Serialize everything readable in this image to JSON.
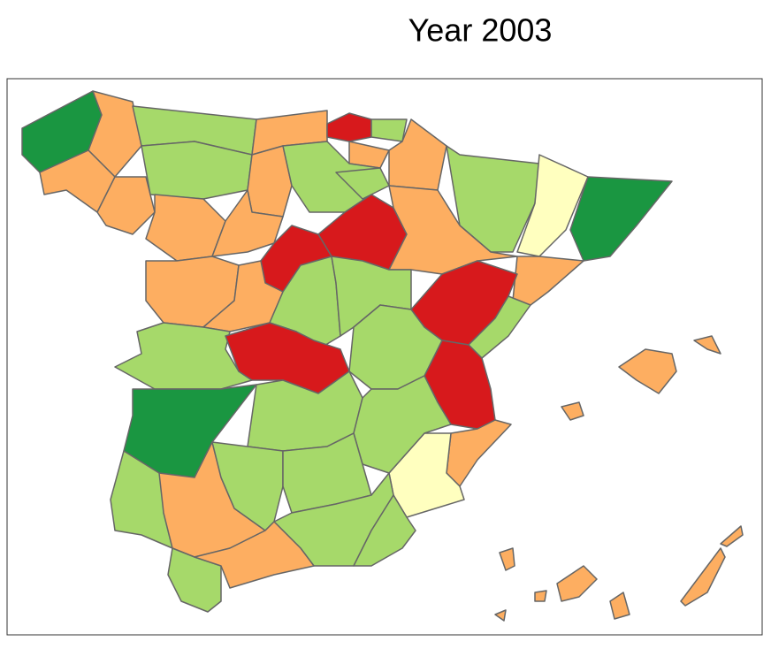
{
  "title": "Year 2003"
}
